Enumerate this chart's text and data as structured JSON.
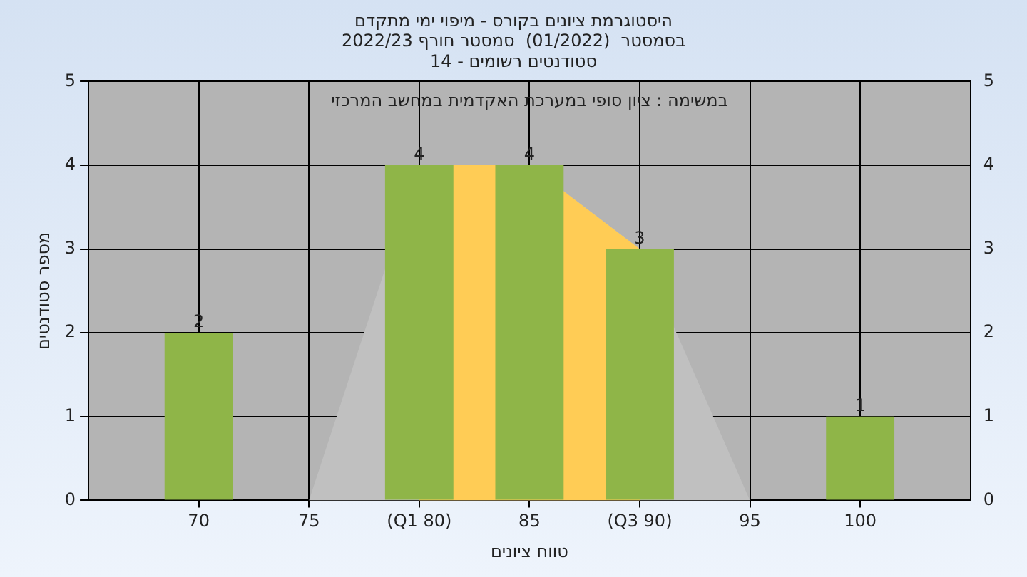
{
  "chart_data": {
    "type": "bar",
    "title": "היסטוגרמת ציונים בקורס - מיפוי ימי מתקדם",
    "subtitle": "בסמסטר  (01/2022)  סמסטר חורף 2022/23\nסטודנטים רשומים - 14",
    "xlabel": "טווח ציונים",
    "ylabel": "מספר סטודנטים",
    "annotations": [
      "במשימה : ציון סופי במערכת האקדמית במחשב המרכזי"
    ],
    "series": [
      {
        "type": "area",
        "color": "#c0c0c0",
        "x": [
          75,
          80,
          85,
          90,
          95
        ],
        "values": [
          0,
          4,
          4,
          3,
          0
        ]
      },
      {
        "type": "area",
        "color": "#ffcc55",
        "x": [
          80,
          85,
          90
        ],
        "values": [
          4,
          4,
          3
        ]
      },
      {
        "color": "#8fb548",
        "x": [
          70,
          80,
          85,
          90,
          100
        ],
        "values": [
          2,
          4,
          4,
          3,
          1
        ],
        "value_labels": [
          "2",
          "4",
          "4",
          "3",
          "1"
        ]
      }
    ],
    "xlim": [
      65,
      105
    ],
    "xticks": [
      70,
      75,
      {
        "value": 80,
        "label": "(Q1 80)"
      },
      85,
      {
        "value": 90,
        "label": "(Q3 90)"
      },
      95,
      100
    ],
    "ylim": [
      0,
      5
    ],
    "yticks": [
      0,
      1,
      2,
      3,
      4,
      5
    ],
    "y2lim": [
      0,
      5
    ],
    "y2ticks": [
      0,
      1,
      2,
      3,
      4,
      5
    ],
    "grid": true,
    "legend": false
  }
}
